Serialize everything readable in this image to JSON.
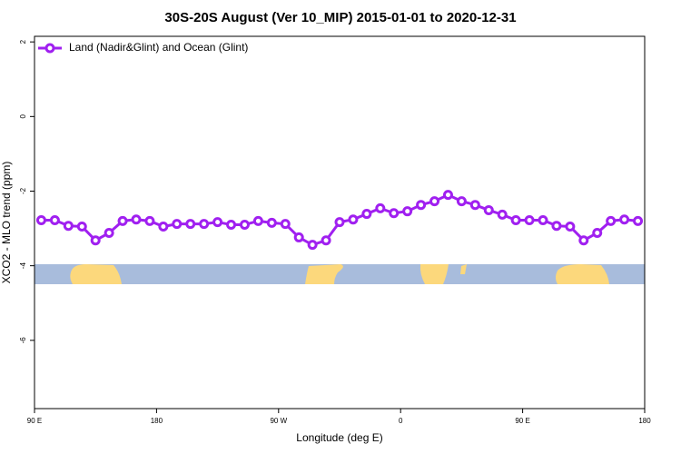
{
  "chart_data": {
    "type": "line",
    "title": "30S-20S August (Ver 10_MIP)   2015-01-01 to 2020-12-31",
    "xlabel": "Longitude (deg E)",
    "ylabel": "XCO2 - MLO trend (ppm)",
    "x": [
      95,
      105,
      115,
      125,
      135,
      145,
      155,
      165,
      175,
      185,
      195,
      205,
      215,
      225,
      235,
      245,
      255,
      265,
      275,
      285,
      295,
      305,
      315,
      325,
      335,
      345,
      355,
      365,
      375,
      385,
      395,
      405,
      415,
      425,
      435,
      445,
      455,
      465,
      475,
      485,
      495,
      505,
      515,
      525,
      535
    ],
    "series": [
      {
        "name": "Land (Nadir&Glint) and Ocean (Glint)",
        "color": "#a020f0",
        "values": [
          -2.78,
          -2.78,
          -2.93,
          -2.95,
          -3.32,
          -3.12,
          -2.8,
          -2.76,
          -2.8,
          -2.95,
          -2.88,
          -2.88,
          -2.88,
          -2.83,
          -2.9,
          -2.9,
          -2.8,
          -2.85,
          -2.88,
          -3.24,
          -3.44,
          -3.32,
          -2.83,
          -2.76,
          -2.61,
          -2.46,
          -2.59,
          -2.54,
          -2.37,
          -2.27,
          -2.1,
          -2.27,
          -2.37,
          -2.51,
          -2.63,
          -2.78,
          -2.78,
          -2.78,
          -2.93,
          -2.95,
          -3.32,
          -3.12,
          -2.8,
          -2.76,
          -2.8
        ]
      }
    ],
    "xlim": [
      90,
      540
    ],
    "xticks": [
      {
        "value": 90,
        "label": "90 E"
      },
      180,
      {
        "value": 270,
        "label": "90 W"
      },
      {
        "value": 360,
        "label": "0"
      },
      {
        "value": 450,
        "label": "90 E"
      },
      {
        "value": 540,
        "label": "180"
      }
    ],
    "ylim": [
      -7.83,
      2.15
    ],
    "yticks": [
      2,
      0,
      -2,
      -4,
      -6
    ],
    "legend": "top-left"
  }
}
